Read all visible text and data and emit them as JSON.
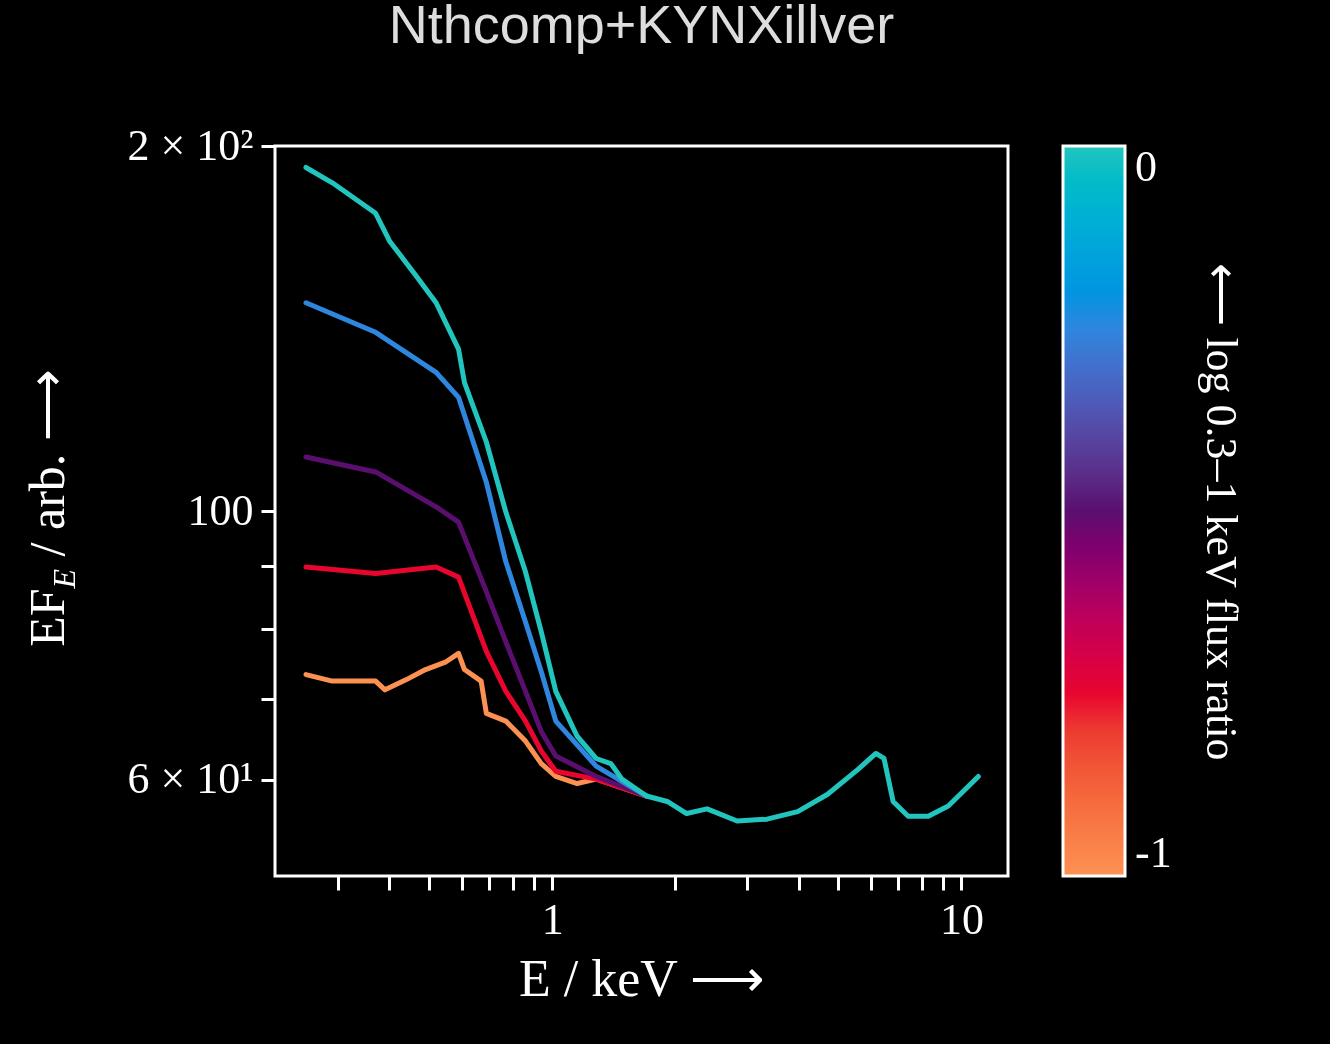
{
  "chart_data": {
    "type": "line",
    "title": "Nthcomp+KYNXillver",
    "xlabel": "E / keV ⟶",
    "ylabel": "EF$_{E}$ / arb. ⟶",
    "clabel": "⟵ log 0.3–1 keV flux ratio",
    "log": "xy",
    "xlim": [
      0.21,
      13
    ],
    "ylim": [
      50,
      200
    ],
    "xticks": [
      {
        "value": 0.3,
        "label": null
      },
      {
        "value": 0.4,
        "label": null
      },
      {
        "value": 0.5,
        "label": null
      },
      {
        "value": 0.6,
        "label": null
      },
      {
        "value": 0.7,
        "label": null
      },
      {
        "value": 0.8,
        "label": null
      },
      {
        "value": 0.9,
        "label": null
      },
      1,
      {
        "value": 2,
        "label": null
      },
      {
        "value": 3,
        "label": null
      },
      {
        "value": 4,
        "label": null
      },
      {
        "value": 5,
        "label": null
      },
      {
        "value": 6,
        "label": null
      },
      {
        "value": 7,
        "label": null
      },
      {
        "value": 8,
        "label": null
      },
      {
        "value": 9,
        "label": null
      },
      10
    ],
    "yticks": [
      {
        "value": 60,
        "label": "6 × 10¹"
      },
      {
        "value": 70,
        "label": null
      },
      {
        "value": 80,
        "label": null
      },
      {
        "value": 90,
        "label": null
      },
      100,
      {
        "value": 200,
        "label": "2 × 10²"
      }
    ],
    "clim": [
      -1,
      0
    ],
    "cticks": [
      {
        "value": -1,
        "label": "-1"
      },
      0
    ],
    "series": [
      {
        "color": "#fd9152",
        "x": [
          0.25,
          0.29,
          0.37,
          0.39,
          0.44,
          0.49,
          0.55,
          0.59,
          0.61,
          0.67,
          0.69,
          0.77,
          0.86,
          0.94,
          1.02,
          1.15,
          1.28,
          1.44,
          1.7
        ],
        "values": [
          73.3,
          72.4,
          72.4,
          71.2,
          72.6,
          74,
          75.1,
          76.3,
          74,
          72.4,
          68.1,
          67.1,
          64.6,
          61.9,
          60.4,
          59.6,
          60.1,
          59.3,
          58.2
        ]
      },
      {
        "color": "#e8062f",
        "x": [
          0.25,
          0.37,
          0.52,
          0.59,
          0.69,
          0.77,
          0.86,
          0.94,
          1.02,
          1.28,
          1.7
        ],
        "values": [
          89.9,
          88.8,
          89.9,
          88.2,
          76.6,
          71,
          67.1,
          63.4,
          61,
          60.1,
          58.2
        ]
      },
      {
        "color": "#5a0f6e",
        "x": [
          0.25,
          0.37,
          0.52,
          0.59,
          0.69,
          0.77,
          0.86,
          0.94,
          1.02,
          1.28,
          1.7
        ],
        "values": [
          110.8,
          107.7,
          100.8,
          97.9,
          85.8,
          78,
          71,
          65.8,
          62.8,
          60.4,
          58.2
        ]
      },
      {
        "color": "#2e86de",
        "x": [
          0.25,
          0.37,
          0.52,
          0.59,
          0.69,
          0.77,
          0.86,
          0.94,
          1.02,
          1.28,
          1.7
        ],
        "values": [
          148.5,
          140.4,
          130.1,
          124.1,
          105.6,
          90.8,
          81,
          73.7,
          67.1,
          61.6,
          58.2
        ]
      },
      {
        "color": "#22c5bd",
        "x": [
          0.25,
          0.29,
          0.37,
          0.4,
          0.46,
          0.52,
          0.59,
          0.61,
          0.69,
          0.77,
          0.86,
          0.94,
          1.02,
          1.15,
          1.28,
          1.39,
          1.48,
          1.7,
          1.91,
          2.13,
          2.39,
          2.83,
          3.35,
          3.98,
          4.71,
          5.58,
          6.18,
          6.47,
          6.81,
          7.41,
          8.3,
          9.29,
          11
        ],
        "values": [
          192,
          186.5,
          176,
          167,
          157,
          148.5,
          136,
          127.6,
          114,
          99.8,
          89.1,
          79.5,
          71,
          65.2,
          62.5,
          61.9,
          60.1,
          58.2,
          57.6,
          56.3,
          56.8,
          55.5,
          55.7,
          56.5,
          58.4,
          61.2,
          63.1,
          62.5,
          57.6,
          56,
          56,
          57.1,
          60.4
        ]
      }
    ]
  }
}
